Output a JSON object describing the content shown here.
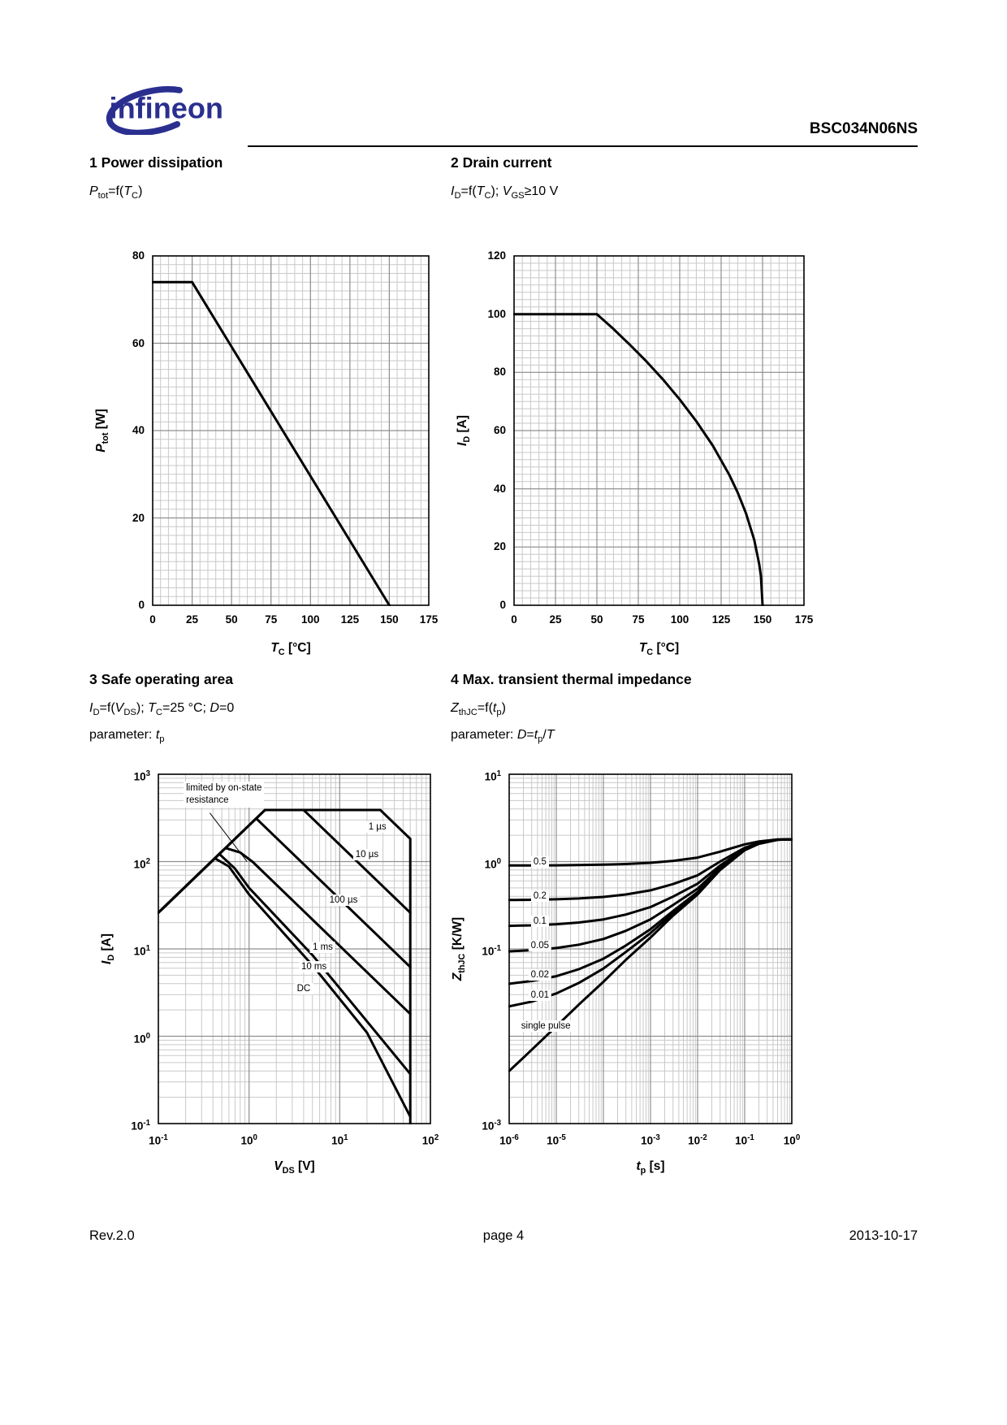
{
  "colors": {
    "brand_blue": "#2a2f8f",
    "grid_minor": "#c9c9c9",
    "grid_major": "#8f8f8f",
    "curve_black": "#000000"
  },
  "header": {
    "logo_text": "infineon",
    "doc_number": "BSC034N06NS"
  },
  "sections": [
    {
      "title": "1 Power dissipation",
      "formula": "*P*~tot~=f(*T*~C~)"
    },
    {
      "title": "2 Drain current",
      "formula": "*I*~D~=f(*T*~C~); *V*~GS~≥10 V"
    },
    {
      "title": "3 Safe operating area",
      "formula": "*I*~D~=f(*V*~DS~); *T*~C~=25 °C; *D*=0",
      "param": "parameter: *t*~p~"
    },
    {
      "title": "4 Max. transient thermal impedance",
      "formula": "*Z*~thJC~=f(*t*~p~)",
      "param": "parameter: *D*=*t*~p~/*T*"
    }
  ],
  "footer": {
    "left": "Rev.2.0",
    "center": "page 4",
    "right": "2013-10-17"
  },
  "chart_data": [
    {
      "id": "power-dissipation",
      "type": "line",
      "xscale": "linear",
      "yscale": "linear",
      "xlim": [
        0,
        175
      ],
      "ylim": [
        0,
        80
      ],
      "x_minor_step": 5,
      "y_minor_step": 2,
      "xlabel": "*T*~C~ [°C]",
      "ylabel": "*P*~tot~ [W]",
      "xticks": [
        {
          "v": 0,
          "label": "0"
        },
        {
          "v": 25,
          "label": "25"
        },
        {
          "v": 50,
          "label": "50"
        },
        {
          "v": 75,
          "label": "75"
        },
        {
          "v": 100,
          "label": "100"
        },
        {
          "v": 125,
          "label": "125"
        },
        {
          "v": 150,
          "label": "150"
        },
        {
          "v": 175,
          "label": "175"
        }
      ],
      "yticks": [
        {
          "v": 0,
          "label": "0"
        },
        {
          "v": 20,
          "label": "20"
        },
        {
          "v": 40,
          "label": "40"
        },
        {
          "v": 60,
          "label": "60"
        },
        {
          "v": 80,
          "label": "80"
        }
      ],
      "series": [
        {
          "name": "Ptot",
          "points": [
            [
              0,
              74
            ],
            [
              25,
              74
            ],
            [
              150,
              0
            ]
          ]
        }
      ]
    },
    {
      "id": "drain-current",
      "type": "line",
      "xscale": "linear",
      "yscale": "linear",
      "xlim": [
        0,
        175
      ],
      "ylim": [
        0,
        120
      ],
      "x_minor_step": 5,
      "y_minor_step": 2.5,
      "xlabel": "*T*~C~ [°C]",
      "ylabel": "*I*~D~ [A]",
      "xticks": [
        {
          "v": 0,
          "label": "0"
        },
        {
          "v": 25,
          "label": "25"
        },
        {
          "v": 50,
          "label": "50"
        },
        {
          "v": 75,
          "label": "75"
        },
        {
          "v": 100,
          "label": "100"
        },
        {
          "v": 125,
          "label": "125"
        },
        {
          "v": 150,
          "label": "150"
        },
        {
          "v": 175,
          "label": "175"
        }
      ],
      "yticks": [
        {
          "v": 0,
          "label": "0"
        },
        {
          "v": 20,
          "label": "20"
        },
        {
          "v": 40,
          "label": "40"
        },
        {
          "v": 60,
          "label": "60"
        },
        {
          "v": 80,
          "label": "80"
        },
        {
          "v": 100,
          "label": "100"
        },
        {
          "v": 120,
          "label": "120"
        }
      ],
      "series": [
        {
          "name": "ID",
          "points": [
            [
              0,
              100
            ],
            [
              50,
              100
            ],
            [
              60,
              94.9
            ],
            [
              70,
              89.4
            ],
            [
              80,
              83.7
            ],
            [
              90,
              77.5
            ],
            [
              100,
              70.7
            ],
            [
              110,
              63.2
            ],
            [
              120,
              54.8
            ],
            [
              130,
              44.7
            ],
            [
              135,
              38.7
            ],
            [
              140,
              31.6
            ],
            [
              145,
              22.4
            ],
            [
              148,
              14.1
            ],
            [
              149,
              10
            ],
            [
              150,
              0
            ]
          ]
        }
      ]
    },
    {
      "id": "safe-operating-area",
      "type": "line",
      "xscale": "log",
      "yscale": "log",
      "xlim": [
        0.1,
        100
      ],
      "ylim": [
        0.1,
        1000
      ],
      "xlabel": "*V*~DS~ [V]",
      "ylabel": "*I*~D~ [A]",
      "xticks": [
        {
          "v": 0.1,
          "label": "10^-1^"
        },
        {
          "v": 1,
          "label": "10^0^"
        },
        {
          "v": 10,
          "label": "10^1^"
        },
        {
          "v": 100,
          "label": "10^2^"
        }
      ],
      "yticks": [
        {
          "v": 1000,
          "label": "10^3^"
        },
        {
          "v": 100,
          "label": "10^2^"
        },
        {
          "v": 10,
          "label": "10^1^"
        },
        {
          "v": 1,
          "label": "10^0^"
        },
        {
          "v": 0.1,
          "label": "10^-1^"
        }
      ],
      "series": [
        {
          "name": "1 µs",
          "points": [
            [
              0.1,
              26
            ],
            [
              1.5,
              390
            ],
            [
              28,
              390
            ],
            [
              60,
              182
            ],
            [
              60,
              0.1
            ]
          ]
        },
        {
          "name": "10 µs",
          "points": [
            [
              0.1,
              26
            ],
            [
              1.5,
              390
            ],
            [
              4,
              390
            ],
            [
              60,
              26
            ]
          ]
        },
        {
          "name": "100 µs",
          "points": [
            [
              0.1,
              26
            ],
            [
              1.2,
              312
            ],
            [
              2,
              187
            ],
            [
              60,
              6.2
            ]
          ]
        },
        {
          "name": "1 ms",
          "points": [
            [
              0.1,
              26
            ],
            [
              0.55,
              143
            ],
            [
              0.8,
              127
            ],
            [
              1.1,
              99
            ],
            [
              60,
              1.8
            ]
          ]
        },
        {
          "name": "10 ms",
          "points": [
            [
              0.1,
              26
            ],
            [
              0.47,
              122
            ],
            [
              0.7,
              83
            ],
            [
              1,
              50
            ],
            [
              5,
              8.5
            ],
            [
              60,
              0.37
            ]
          ]
        },
        {
          "name": "DC",
          "points": [
            [
              0.1,
              26
            ],
            [
              0.42,
              109
            ],
            [
              0.6,
              88
            ],
            [
              1,
              42
            ],
            [
              5,
              6.5
            ],
            [
              20,
              1.1
            ],
            [
              60,
              0.12
            ]
          ]
        }
      ],
      "curve_labels": [
        {
          "text": "1 µs",
          "x": 26,
          "y": 250
        },
        {
          "text": "10 µs",
          "x": 20,
          "y": 120
        },
        {
          "text": "100 µs",
          "x": 11,
          "y": 36
        },
        {
          "text": "1 ms",
          "x": 6.5,
          "y": 10.5
        },
        {
          "text": "10 ms",
          "x": 5.2,
          "y": 6.2
        },
        {
          "text": "DC",
          "x": 4,
          "y": 3.5
        }
      ],
      "annotations": [
        {
          "text": "limited by on-state\nresistance",
          "x": 0.19,
          "y": 820,
          "line": [
            0.37,
            360,
            0.95,
            100
          ]
        }
      ]
    },
    {
      "id": "transient-thermal-impedance",
      "type": "line",
      "xscale": "log",
      "yscale": "log",
      "xlim": [
        1e-06,
        1
      ],
      "ylim": [
        0.001,
        10
      ],
      "xlabel": "*t*~p~ [s]",
      "ylabel": "*Z*~thJC~ [K/W]",
      "xticks": [
        {
          "v": 1e-06,
          "label": "10^-6^"
        },
        {
          "v": 1e-05,
          "label": "10^-5^"
        },
        {
          "v": 0.0001,
          "label": ""
        },
        {
          "v": 0.001,
          "label": "10^-3^"
        },
        {
          "v": 0.01,
          "label": "10^-2^"
        },
        {
          "v": 0.1,
          "label": "10^-1^"
        },
        {
          "v": 1,
          "label": "10^0^"
        }
      ],
      "yticks": [
        {
          "v": 10,
          "label": "10^1^"
        },
        {
          "v": 1,
          "label": "10^0^"
        },
        {
          "v": 0.1,
          "label": "10^-1^"
        },
        {
          "v": 0.01,
          "label": ""
        },
        {
          "v": 0.001,
          "label": "10^-3^"
        }
      ],
      "series": [
        {
          "name": "D-0.5",
          "points": [
            [
              1e-06,
              0.902
            ],
            [
              3e-06,
              0.9035
            ],
            [
              1e-05,
              0.9065
            ],
            [
              3e-05,
              0.9115
            ],
            [
              0.0001,
              0.921
            ],
            [
              0.0003,
              0.9375
            ],
            [
              0.001,
              0.9675
            ],
            [
              0.003,
              1.02
            ],
            [
              0.01,
              1.11
            ],
            [
              0.03,
              1.3
            ],
            [
              0.1,
              1.575
            ],
            [
              0.2,
              1.7
            ],
            [
              0.5,
              1.79
            ],
            [
              1,
              1.8
            ]
          ]
        },
        {
          "name": "D-0.2",
          "points": [
            [
              1e-06,
              0.3632
            ],
            [
              3e-06,
              0.3656
            ],
            [
              1e-05,
              0.3704
            ],
            [
              3e-05,
              0.3784
            ],
            [
              0.0001,
              0.3936
            ],
            [
              0.0003,
              0.42
            ],
            [
              0.001,
              0.468
            ],
            [
              0.003,
              0.552
            ],
            [
              0.01,
              0.696
            ],
            [
              0.03,
              1.0
            ],
            [
              0.1,
              1.44
            ],
            [
              0.2,
              1.64
            ],
            [
              0.5,
              1.784
            ],
            [
              1,
              1.8
            ]
          ]
        },
        {
          "name": "D-0.1",
          "points": [
            [
              1e-06,
              0.1836
            ],
            [
              3e-06,
              0.1863
            ],
            [
              1e-05,
              0.1917
            ],
            [
              3e-05,
              0.2007
            ],
            [
              0.0001,
              0.2178
            ],
            [
              0.0003,
              0.2475
            ],
            [
              0.001,
              0.3015
            ],
            [
              0.003,
              0.396
            ],
            [
              0.01,
              0.558
            ],
            [
              0.03,
              0.9
            ],
            [
              0.1,
              1.395
            ],
            [
              0.2,
              1.62
            ],
            [
              0.5,
              1.782
            ],
            [
              1,
              1.8
            ]
          ]
        },
        {
          "name": "D-0.05",
          "points": [
            [
              1e-06,
              0.0938
            ],
            [
              3e-06,
              0.0967
            ],
            [
              1e-05,
              0.1024
            ],
            [
              3e-05,
              0.1119
            ],
            [
              0.0001,
              0.1299
            ],
            [
              0.0003,
              0.1613
            ],
            [
              0.001,
              0.2183
            ],
            [
              0.003,
              0.318
            ],
            [
              0.01,
              0.489
            ],
            [
              0.03,
              0.85
            ],
            [
              0.1,
              1.3725
            ],
            [
              0.2,
              1.61
            ],
            [
              0.5,
              1.781
            ],
            [
              1,
              1.8
            ]
          ]
        },
        {
          "name": "D-0.02",
          "points": [
            [
              1e-06,
              0.0399
            ],
            [
              3e-06,
              0.0429
            ],
            [
              1e-05,
              0.0487
            ],
            [
              3e-05,
              0.0585
            ],
            [
              0.0001,
              0.0772
            ],
            [
              0.0003,
              0.1095
            ],
            [
              0.001,
              0.1683
            ],
            [
              0.003,
              0.2712
            ],
            [
              0.01,
              0.4476
            ],
            [
              0.03,
              0.82
            ],
            [
              0.1,
              1.359
            ],
            [
              0.2,
              1.604
            ],
            [
              0.5,
              1.7804
            ],
            [
              1,
              1.8
            ]
          ]
        },
        {
          "name": "D-0.01",
          "points": [
            [
              1e-06,
              0.022
            ],
            [
              3e-06,
              0.0249
            ],
            [
              1e-05,
              0.0309
            ],
            [
              3e-05,
              0.0408
            ],
            [
              0.0001,
              0.0596
            ],
            [
              0.0003,
              0.0923
            ],
            [
              0.001,
              0.1517
            ],
            [
              0.003,
              0.2556
            ],
            [
              0.01,
              0.4338
            ],
            [
              0.03,
              0.81
            ],
            [
              0.1,
              1.3545
            ],
            [
              0.2,
              1.602
            ],
            [
              0.5,
              1.7802
            ],
            [
              1,
              1.8
            ]
          ]
        },
        {
          "name": "single-pulse",
          "points": [
            [
              1e-06,
              0.004
            ],
            [
              3e-06,
              0.007
            ],
            [
              1e-05,
              0.013
            ],
            [
              3e-05,
              0.023
            ],
            [
              0.0001,
              0.042
            ],
            [
              0.0003,
              0.075
            ],
            [
              0.001,
              0.135
            ],
            [
              0.003,
              0.24
            ],
            [
              0.01,
              0.42
            ],
            [
              0.03,
              0.8
            ],
            [
              0.1,
              1.35
            ],
            [
              0.2,
              1.6
            ],
            [
              0.5,
              1.78
            ],
            [
              1,
              1.8
            ]
          ]
        }
      ],
      "curve_labels": [
        {
          "text": "0.5",
          "x": 4.5e-06,
          "y": 0.98
        },
        {
          "text": "0.2",
          "x": 4.5e-06,
          "y": 0.405
        },
        {
          "text": "0.1",
          "x": 4.5e-06,
          "y": 0.207
        },
        {
          "text": "0.05",
          "x": 4.5e-06,
          "y": 0.108
        },
        {
          "text": "0.02",
          "x": 4.5e-06,
          "y": 0.05
        },
        {
          "text": "0.01",
          "x": 4.5e-06,
          "y": 0.0295
        },
        {
          "text": "single pulse",
          "x": 6e-06,
          "y": 0.013
        }
      ]
    }
  ]
}
